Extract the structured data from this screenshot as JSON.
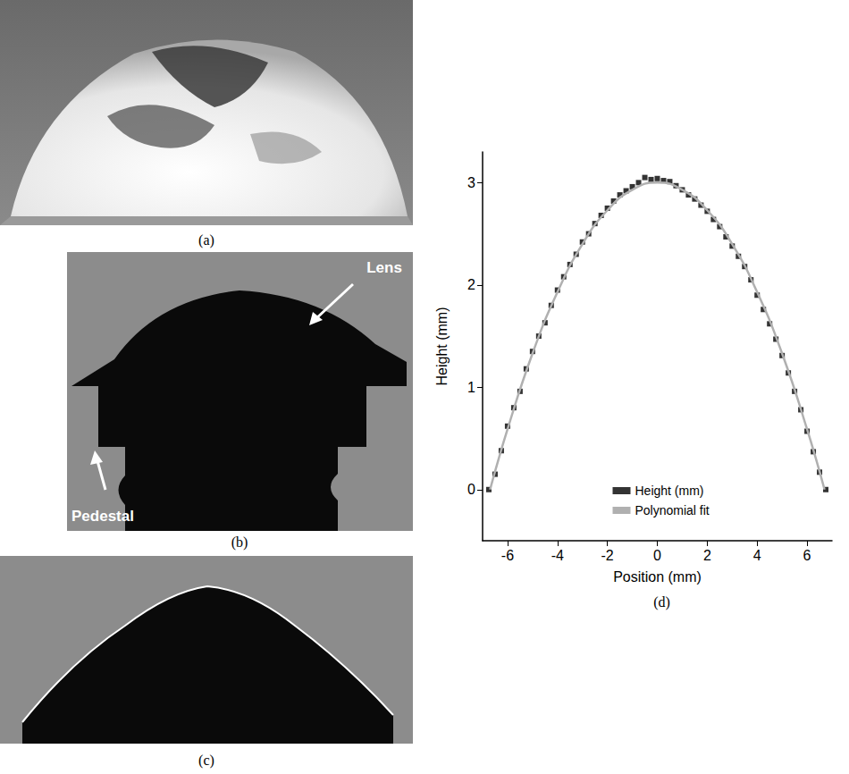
{
  "chart_data": {
    "type": "scatter",
    "panel_label": "(d)",
    "x_label": "Position (mm)",
    "y_label": "Height (mm)",
    "xlim": [
      -7,
      7
    ],
    "ylim": [
      -0.5,
      3.3
    ],
    "xticks": [
      -6,
      -4,
      -2,
      0,
      2,
      4,
      6
    ],
    "yticks": [
      0,
      1,
      2,
      3
    ],
    "grid": false,
    "legend": "bottom",
    "series": [
      {
        "name": "Height (mm)",
        "type": "scatter",
        "color": "#000000",
        "marker": "square",
        "x": [
          -6.75,
          -6.5,
          -6.25,
          -6.0,
          -5.75,
          -5.5,
          -5.25,
          -5.0,
          -4.75,
          -4.5,
          -4.25,
          -4.0,
          -3.75,
          -3.5,
          -3.25,
          -3.0,
          -2.75,
          -2.5,
          -2.25,
          -2.0,
          -1.75,
          -1.5,
          -1.25,
          -1.0,
          -0.75,
          -0.5,
          -0.25,
          0,
          0.25,
          0.5,
          0.75,
          1.0,
          1.25,
          1.5,
          1.75,
          2.0,
          2.25,
          2.5,
          2.75,
          3.0,
          3.25,
          3.5,
          3.75,
          4.0,
          4.25,
          4.5,
          4.75,
          5.0,
          5.25,
          5.5,
          5.75,
          6.0,
          6.25,
          6.5,
          6.75
        ],
        "values": [
          0.0,
          0.15,
          0.38,
          0.62,
          0.8,
          0.96,
          1.18,
          1.35,
          1.5,
          1.63,
          1.8,
          1.95,
          2.08,
          2.2,
          2.3,
          2.42,
          2.5,
          2.6,
          2.68,
          2.75,
          2.82,
          2.88,
          2.92,
          2.96,
          3.0,
          3.05,
          3.03,
          3.04,
          3.02,
          3.01,
          2.97,
          2.93,
          2.88,
          2.84,
          2.78,
          2.72,
          2.64,
          2.57,
          2.47,
          2.38,
          2.28,
          2.18,
          2.05,
          1.9,
          1.76,
          1.62,
          1.47,
          1.31,
          1.14,
          0.96,
          0.78,
          0.57,
          0.37,
          0.17,
          0.0
        ]
      },
      {
        "name": "Polynomial fit",
        "type": "line",
        "color": "#b0b0b0",
        "line_style": "solid",
        "x": [
          -6.7,
          -6,
          -5,
          -4,
          -3,
          -2,
          -1,
          0,
          1,
          2,
          3,
          4,
          5,
          6,
          6.7
        ],
        "values": [
          0,
          0.59,
          1.33,
          1.93,
          2.4,
          2.73,
          2.93,
          3.0,
          2.93,
          2.73,
          2.4,
          1.93,
          1.33,
          0.59,
          0
        ]
      }
    ]
  },
  "panels": [
    {
      "label": "(a)"
    },
    {
      "label": "(b)",
      "annotations": [
        "Lens",
        "Pedestal"
      ]
    },
    {
      "label": "(c)"
    }
  ]
}
